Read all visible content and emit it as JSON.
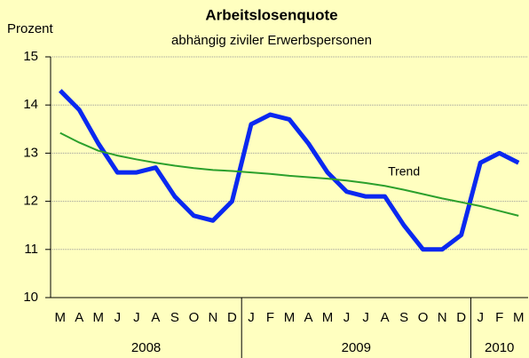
{
  "chart_data": {
    "type": "line",
    "title": "Arbeitslosenquote",
    "subtitle": "abhängig ziviler Erwerbspersonen",
    "y_label": "Prozent",
    "category_groups": [
      {
        "label": "2008",
        "categories": [
          "M",
          "A",
          "M",
          "J",
          "J",
          "A",
          "S",
          "O",
          "N",
          "D"
        ]
      },
      {
        "label": "2009",
        "categories": [
          "J",
          "F",
          "M",
          "A",
          "M",
          "J",
          "J",
          "A",
          "S",
          "O",
          "N",
          "D"
        ]
      },
      {
        "label": "2010",
        "categories": [
          "J",
          "F",
          "M"
        ]
      }
    ],
    "series": [
      {
        "color": "#0a28f0",
        "width": 5,
        "values": [
          14.3,
          13.9,
          13.2,
          12.6,
          12.6,
          12.7,
          12.1,
          11.7,
          11.6,
          12.0,
          13.6,
          13.8,
          13.7,
          13.2,
          12.6,
          12.2,
          12.1,
          12.1,
          11.5,
          11.0,
          11.0,
          11.3,
          12.8,
          13.0,
          12.8
        ]
      },
      {
        "name": "Trend",
        "color": "#2ca02c",
        "width": 2,
        "values": [
          13.42,
          13.22,
          13.05,
          12.95,
          12.87,
          12.8,
          12.74,
          12.69,
          12.65,
          12.63,
          12.6,
          12.57,
          12.53,
          12.5,
          12.47,
          12.43,
          12.38,
          12.32,
          12.24,
          12.15,
          12.06,
          11.98,
          11.9,
          11.8,
          11.7
        ]
      }
    ],
    "ylim": [
      10,
      15
    ],
    "yticks": [
      10,
      11,
      12,
      13,
      14,
      15
    ],
    "grid": true
  }
}
